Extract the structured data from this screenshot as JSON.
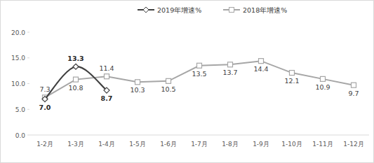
{
  "chart_data": {
    "type": "line",
    "categories": [
      "1-2月",
      "1-3月",
      "1-4月",
      "1-5月",
      "1-6月",
      "1-7月",
      "1-8月",
      "1-9月",
      "1-10月",
      "1-11月",
      "1-12月"
    ],
    "series": [
      {
        "name": "2019年增速%",
        "color": "#404040",
        "marker": "diamond",
        "line_style": "smooth",
        "values": [
          7.0,
          13.3,
          8.7,
          null,
          null,
          null,
          null,
          null,
          null,
          null,
          null
        ],
        "value_labels": [
          "7.0",
          "13.3",
          "8.7",
          null,
          null,
          null,
          null,
          null,
          null,
          null,
          null
        ]
      },
      {
        "name": "2018年增速%",
        "color": "#a6a6a6",
        "marker": "square",
        "line_style": "solid",
        "values": [
          7.3,
          10.8,
          11.4,
          10.3,
          10.5,
          13.5,
          13.7,
          14.4,
          12.1,
          10.9,
          9.7
        ]
      }
    ],
    "ylim": [
      0,
      20
    ],
    "yticks": [
      {
        "value": 0,
        "label": "0.0"
      },
      {
        "value": 5,
        "label": "5.0"
      },
      {
        "value": 10,
        "label": "10.0"
      },
      {
        "value": 15,
        "label": "15.0"
      },
      {
        "value": 20,
        "label": "20.0"
      }
    ],
    "grid": false,
    "legend": "top",
    "data_labels": true
  }
}
